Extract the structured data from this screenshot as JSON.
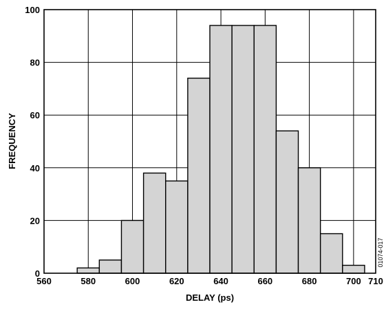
{
  "chart_data": {
    "type": "bar",
    "subtype": "histogram",
    "xlabel": "DELAY (ps)",
    "ylabel": "FREQUENCY",
    "xlim": [
      560,
      710
    ],
    "ylim": [
      0,
      100
    ],
    "x_ticks": [
      560,
      580,
      600,
      620,
      640,
      660,
      680,
      700,
      710
    ],
    "y_ticks": [
      0,
      20,
      40,
      60,
      80,
      100
    ],
    "grid": true,
    "figure_id": "01074-017",
    "bin_width": 10,
    "bins": [
      {
        "center": 580,
        "value": 2
      },
      {
        "center": 590,
        "value": 5
      },
      {
        "center": 600,
        "value": 20
      },
      {
        "center": 610,
        "value": 38
      },
      {
        "center": 620,
        "value": 35
      },
      {
        "center": 630,
        "value": 74
      },
      {
        "center": 640,
        "value": 94
      },
      {
        "center": 650,
        "value": 94
      },
      {
        "center": 660,
        "value": 94
      },
      {
        "center": 670,
        "value": 54
      },
      {
        "center": 680,
        "value": 40
      },
      {
        "center": 690,
        "value": 15
      },
      {
        "center": 700,
        "value": 3
      }
    ],
    "colors": {
      "bar_fill": "#d4d4d4",
      "bar_stroke": "#000000",
      "grid": "#000000",
      "background": "#ffffff"
    }
  }
}
